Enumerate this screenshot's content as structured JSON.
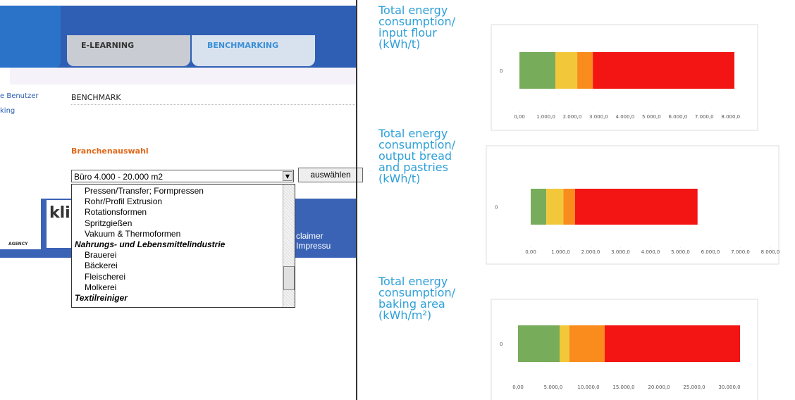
{
  "page": {
    "tabs": [
      "E-LEARNING",
      "BENCHMARKING"
    ],
    "nav": [
      "e Benutzer",
      "king"
    ],
    "section_title": "BENCHMARK",
    "filter_label": "Branchenauswahl",
    "select_value": "Büro 4.000 - 20.000 m2",
    "button": "auswählen",
    "options": [
      "Pressen/Transfer; Formpressen",
      "Rohr/Profil Extrusion",
      "Rotationsformen",
      "Spritzgießen",
      "Vakuum & Thermoformen",
      "Nahrungs- und Lebensmittelindustrie",
      "Brauerei",
      "Bäckerei",
      "Fleischerei",
      "Molkerei",
      "Textilreiniger"
    ],
    "footer_logo": "kli",
    "footer_agency": "AGENCY",
    "footer_links": "claimer Impressu"
  },
  "chart_data": [
    {
      "type": "stacked-bar",
      "title": "Total energy consumption/ input flour (kWh/t)",
      "categories": [
        "0"
      ],
      "series": [
        {
          "color": "#77ac5b",
          "values": [
            1360
          ]
        },
        {
          "color": "#f2c83a",
          "values": [
            830
          ]
        },
        {
          "color": "#fa8c1e",
          "values": [
            590
          ]
        },
        {
          "color": "#f31414",
          "values": [
            5360
          ]
        }
      ],
      "xlim": [
        0,
        8300
      ],
      "xticks": [
        {
          "value": 0,
          "label": "0,00"
        },
        {
          "value": 1000,
          "label": "1.000,0"
        },
        {
          "value": 2000,
          "label": "2.000,0"
        },
        {
          "value": 3000,
          "label": "3.000,0"
        },
        {
          "value": 4000,
          "label": "4.000,0"
        },
        {
          "value": 5000,
          "label": "5.000,0"
        },
        {
          "value": 6000,
          "label": "6.000,0"
        },
        {
          "value": 7000,
          "label": "7.000,0"
        },
        {
          "value": 8000,
          "label": "8.000,0"
        }
      ]
    },
    {
      "type": "stacked-bar",
      "title": "Total energy consumption/ output bread and pastries (kWh/t)",
      "categories": [
        "0"
      ],
      "series": [
        {
          "color": "#77ac5b",
          "values": [
            520
          ]
        },
        {
          "color": "#f2c83a",
          "values": [
            570
          ]
        },
        {
          "color": "#fa8c1e",
          "values": [
            390
          ]
        },
        {
          "color": "#f31414",
          "values": [
            4090
          ]
        }
      ],
      "xlim": [
        0,
        8000
      ],
      "xticks": [
        {
          "value": 0,
          "label": "0,00"
        },
        {
          "value": 1000,
          "label": "1.000,0"
        },
        {
          "value": 2000,
          "label": "2.000,0"
        },
        {
          "value": 3000,
          "label": "3.000,0"
        },
        {
          "value": 4000,
          "label": "4.000,0"
        },
        {
          "value": 5000,
          "label": "5.000,0"
        },
        {
          "value": 6000,
          "label": "6.000,0"
        },
        {
          "value": 7000,
          "label": "7.000,0"
        },
        {
          "value": 8000,
          "label": "8.000,0"
        }
      ]
    },
    {
      "type": "stacked-bar",
      "title": "Total energy consumption/ baking area (kWh/m²)",
      "categories": [
        "0"
      ],
      "series": [
        {
          "color": "#77ac5b",
          "values": [
            5900
          ]
        },
        {
          "color": "#f2c83a",
          "values": [
            1400
          ]
        },
        {
          "color": "#fa8c1e",
          "values": [
            5000
          ]
        },
        {
          "color": "#f31414",
          "values": [
            19200
          ]
        }
      ],
      "xlim": [
        0,
        32000
      ],
      "xticks": [
        {
          "value": 0,
          "label": "0,00"
        },
        {
          "value": 5000,
          "label": "5.000,0"
        },
        {
          "value": 10000,
          "label": "10.000,0"
        },
        {
          "value": 15000,
          "label": "15.000,0"
        },
        {
          "value": 20000,
          "label": "20.000,0"
        },
        {
          "value": 25000,
          "label": "25.000,0"
        },
        {
          "value": 30000,
          "label": "30.000,0"
        }
      ]
    }
  ]
}
